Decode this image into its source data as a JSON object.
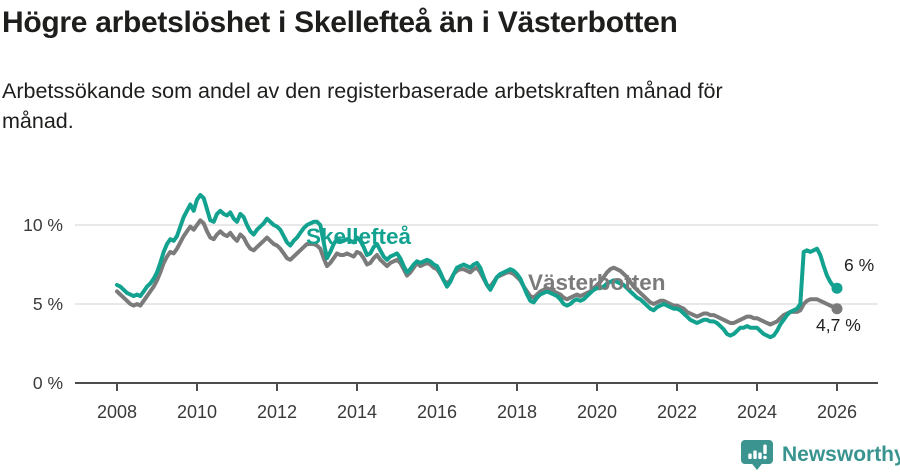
{
  "header": {
    "title": "Högre arbetslöshet i Skellefteå än i Västerbotten",
    "subtitle_line1": "Arbetssökande som andel av den registerbaserade arbetskraften månad för",
    "subtitle_line2": "månad."
  },
  "chart_data": {
    "type": "line",
    "title": "Högre arbetslöshet i Skellefteå än i Västerbotten",
    "subtitle": "Arbetssökande som andel av den registerbaserade arbetskraften månad för månad.",
    "x_unit": "year (monthly data)",
    "x_start": 2008.0,
    "x_end": 2026.0,
    "x_step": 0.0833,
    "x_ticks": [
      2008,
      2010,
      2012,
      2014,
      2016,
      2018,
      2020,
      2022,
      2024,
      2026
    ],
    "y_ticks": [
      {
        "value": 0,
        "label": "0 %"
      },
      {
        "value": 5,
        "label": "5 %"
      },
      {
        "value": 10,
        "label": "10 %"
      }
    ],
    "ylim": [
      0,
      12.6
    ],
    "grid": "horizontal",
    "legend_position": "inline-labels",
    "colors": {
      "axis": "#4d4d4d",
      "grid": "#e1e1e1",
      "tick_text": "#3a3a3a",
      "end_label_text": "#222222"
    },
    "series": [
      {
        "name": "Skellefteå",
        "color": "#12a28f",
        "end_label": "6 %",
        "end_value": 6.0,
        "values": [
          6.2,
          6.1,
          5.9,
          5.7,
          5.6,
          5.5,
          5.6,
          5.5,
          5.8,
          6.1,
          6.3,
          6.6,
          7.0,
          7.6,
          8.3,
          8.8,
          9.1,
          9.0,
          9.3,
          9.9,
          10.5,
          10.9,
          11.3,
          10.9,
          11.6,
          11.9,
          11.7,
          11.0,
          10.3,
          10.2,
          10.7,
          10.9,
          10.7,
          10.6,
          10.8,
          10.4,
          10.2,
          10.7,
          10.5,
          10.0,
          9.6,
          9.4,
          9.7,
          9.9,
          10.1,
          10.4,
          10.2,
          10.0,
          9.9,
          9.7,
          9.3,
          8.9,
          8.7,
          9.0,
          9.2,
          9.5,
          9.8,
          10.0,
          10.1,
          10.2,
          10.2,
          10.0,
          8.9,
          7.9,
          8.3,
          8.8,
          9.1,
          9.0,
          9.0,
          9.1,
          9.0,
          8.9,
          9.2,
          9.0,
          8.6,
          8.1,
          8.2,
          8.6,
          8.8,
          8.4,
          8.0,
          7.8,
          8.0,
          8.1,
          8.2,
          7.9,
          7.4,
          7.0,
          7.2,
          7.5,
          7.7,
          7.6,
          7.7,
          7.8,
          7.7,
          7.5,
          7.4,
          7.0,
          6.5,
          6.1,
          6.4,
          6.9,
          7.3,
          7.4,
          7.5,
          7.4,
          7.3,
          7.5,
          7.6,
          7.3,
          6.7,
          6.2,
          5.9,
          6.3,
          6.7,
          6.9,
          7.0,
          7.1,
          7.2,
          7.1,
          6.9,
          6.6,
          6.1,
          5.6,
          5.2,
          5.1,
          5.4,
          5.6,
          5.7,
          5.8,
          5.7,
          5.6,
          5.5,
          5.3,
          5.0,
          4.9,
          5.0,
          5.2,
          5.3,
          5.2,
          5.3,
          5.5,
          5.7,
          5.9,
          6.0,
          6.0,
          6.1,
          6.3,
          6.4,
          6.5,
          6.4,
          6.3,
          6.2,
          6.0,
          5.8,
          5.6,
          5.4,
          5.3,
          5.1,
          4.9,
          4.7,
          4.6,
          4.8,
          4.9,
          5.0,
          4.9,
          4.8,
          4.7,
          4.7,
          4.6,
          4.4,
          4.2,
          4.0,
          3.9,
          3.8,
          3.9,
          4.0,
          4.0,
          3.9,
          3.9,
          3.8,
          3.6,
          3.4,
          3.1,
          3.0,
          3.1,
          3.3,
          3.5,
          3.5,
          3.6,
          3.5,
          3.5,
          3.5,
          3.3,
          3.1,
          3.0,
          2.9,
          3.0,
          3.3,
          3.7,
          4.0,
          4.3,
          4.5,
          4.6,
          4.7,
          5.0,
          8.3,
          8.4,
          8.3,
          8.4,
          8.5,
          8.1,
          7.4,
          6.8,
          6.4,
          6.1,
          6.0
        ]
      },
      {
        "name": "Västerbotten",
        "color": "#7b7b7b",
        "end_label": "4,7 %",
        "end_value": 4.7,
        "values": [
          5.8,
          5.6,
          5.4,
          5.2,
          5.0,
          4.9,
          5.0,
          4.9,
          5.2,
          5.5,
          5.8,
          6.1,
          6.5,
          7.0,
          7.6,
          8.0,
          8.3,
          8.2,
          8.5,
          8.9,
          9.3,
          9.6,
          9.9,
          9.7,
          10.0,
          10.3,
          10.1,
          9.6,
          9.2,
          9.1,
          9.4,
          9.6,
          9.4,
          9.3,
          9.5,
          9.2,
          9.0,
          9.4,
          9.2,
          8.8,
          8.5,
          8.4,
          8.6,
          8.8,
          9.0,
          9.2,
          9.0,
          8.8,
          8.7,
          8.5,
          8.2,
          7.9,
          7.8,
          8.0,
          8.2,
          8.4,
          8.6,
          8.8,
          8.8,
          8.8,
          8.7,
          8.5,
          7.9,
          7.4,
          7.6,
          7.9,
          8.2,
          8.1,
          8.1,
          8.2,
          8.1,
          8.0,
          8.3,
          8.2,
          7.9,
          7.5,
          7.6,
          7.9,
          8.1,
          7.8,
          7.6,
          7.4,
          7.6,
          7.7,
          7.8,
          7.6,
          7.2,
          6.8,
          7.0,
          7.3,
          7.6,
          7.4,
          7.5,
          7.6,
          7.5,
          7.3,
          7.2,
          6.9,
          6.5,
          6.3,
          6.5,
          6.9,
          7.1,
          7.2,
          7.2,
          7.1,
          7.0,
          7.2,
          7.3,
          7.0,
          6.6,
          6.2,
          6.1,
          6.4,
          6.7,
          6.8,
          6.9,
          7.0,
          7.0,
          6.9,
          6.7,
          6.5,
          6.1,
          5.8,
          5.5,
          5.4,
          5.6,
          5.8,
          5.9,
          6.0,
          5.9,
          5.8,
          5.7,
          5.6,
          5.4,
          5.3,
          5.4,
          5.5,
          5.6,
          5.5,
          5.6,
          5.7,
          5.8,
          6.0,
          6.2,
          6.4,
          6.7,
          7.0,
          7.2,
          7.3,
          7.2,
          7.1,
          6.9,
          6.7,
          6.4,
          6.1,
          5.9,
          5.7,
          5.5,
          5.3,
          5.1,
          5.0,
          5.1,
          5.2,
          5.2,
          5.1,
          5.0,
          4.9,
          4.9,
          4.8,
          4.7,
          4.5,
          4.4,
          4.3,
          4.2,
          4.3,
          4.4,
          4.4,
          4.3,
          4.3,
          4.2,
          4.1,
          4.0,
          3.9,
          3.8,
          3.8,
          3.9,
          4.0,
          4.1,
          4.2,
          4.2,
          4.1,
          4.1,
          4.0,
          3.9,
          3.8,
          3.7,
          3.8,
          3.9,
          4.1,
          4.3,
          4.4,
          4.5,
          4.5,
          4.5,
          4.6,
          5.0,
          5.2,
          5.3,
          5.3,
          5.3,
          5.2,
          5.1,
          5.0,
          4.9,
          4.8,
          4.7
        ]
      }
    ]
  },
  "footer": {
    "brand": "Newsworthy",
    "brand_color": "#399490",
    "logo_icon": "bar-chart-speech-bubble-icon"
  }
}
